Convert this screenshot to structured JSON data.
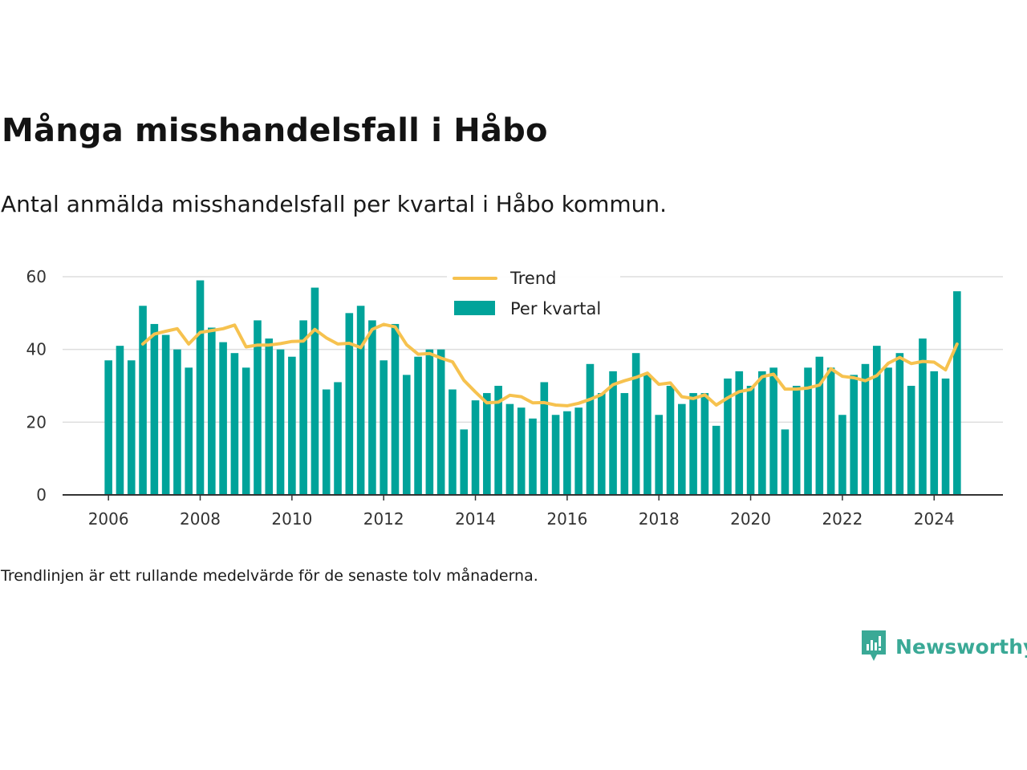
{
  "title": "Många misshandelsfall i Håbo",
  "subtitle": "Antal anmälda misshandelsfall per kvartal i Håbo kommun.",
  "footnote": "Trendlinjen är ett rullande medelvärde för de senaste tolv månaderna.",
  "brand": {
    "name": "Newsworthy",
    "icon": "newsworthy-logo-icon"
  },
  "colors": {
    "bars": "#00a39a",
    "trend": "#f6c24f",
    "grid": "#dddddd",
    "axis": "#333333",
    "brand": "#3aa996"
  },
  "chart_data": {
    "type": "bar",
    "title": "",
    "xlabel": "",
    "ylabel": "",
    "ylim": [
      0,
      60
    ],
    "xlim": [
      2005,
      2025.5
    ],
    "yticks": [
      0,
      20,
      40,
      60
    ],
    "xticks": [
      2006,
      2008,
      2010,
      2012,
      2014,
      2016,
      2018,
      2020,
      2022,
      2024
    ],
    "grid": true,
    "legend_position": "top-center",
    "x_start": 2006.0,
    "x_step": 0.25,
    "series": [
      {
        "name": "Per kvartal",
        "type": "bar",
        "values": [
          37,
          41,
          37,
          52,
          47,
          44,
          40,
          35,
          59,
          46,
          42,
          39,
          35,
          48,
          43,
          40,
          38,
          48,
          57,
          29,
          31,
          50,
          52,
          48,
          37,
          47,
          33,
          38,
          40,
          40,
          29,
          18,
          26,
          28,
          30,
          25,
          24,
          21,
          31,
          22,
          23,
          24,
          36,
          28,
          34,
          28,
          39,
          33,
          22,
          30,
          25,
          28,
          28,
          19,
          32,
          34,
          30,
          34,
          35,
          18,
          30,
          35,
          38,
          35,
          22,
          33,
          36,
          41,
          35,
          39,
          30,
          43,
          34,
          32,
          56
        ]
      },
      {
        "name": "Trend",
        "type": "line",
        "start_index": 3,
        "values": [
          41.5,
          44.2,
          45.0,
          45.7,
          41.5,
          44.7,
          45.2,
          45.7,
          46.7,
          40.7,
          41.2,
          41.2,
          41.6,
          42.2,
          42.3,
          45.5,
          43.2,
          41.5,
          41.7,
          40.5,
          45.5,
          46.9,
          46.2,
          41.3,
          38.7,
          38.9,
          37.6,
          36.6,
          31.5,
          28.3,
          25.3,
          25.5,
          27.4,
          27.0,
          25.3,
          25.4,
          24.7,
          24.5,
          25.2,
          26.3,
          27.6,
          30.3,
          31.4,
          32.3,
          33.5,
          30.4,
          30.8,
          27.0,
          26.5,
          27.5,
          24.7,
          26.7,
          28.4,
          29.0,
          32.5,
          33.2,
          29.1,
          29.1,
          29.4,
          30.2,
          34.7,
          32.6,
          32.2,
          31.4,
          32.8,
          36.2,
          37.8,
          36.1,
          36.7,
          36.5,
          34.4,
          41.5
        ]
      }
    ]
  }
}
